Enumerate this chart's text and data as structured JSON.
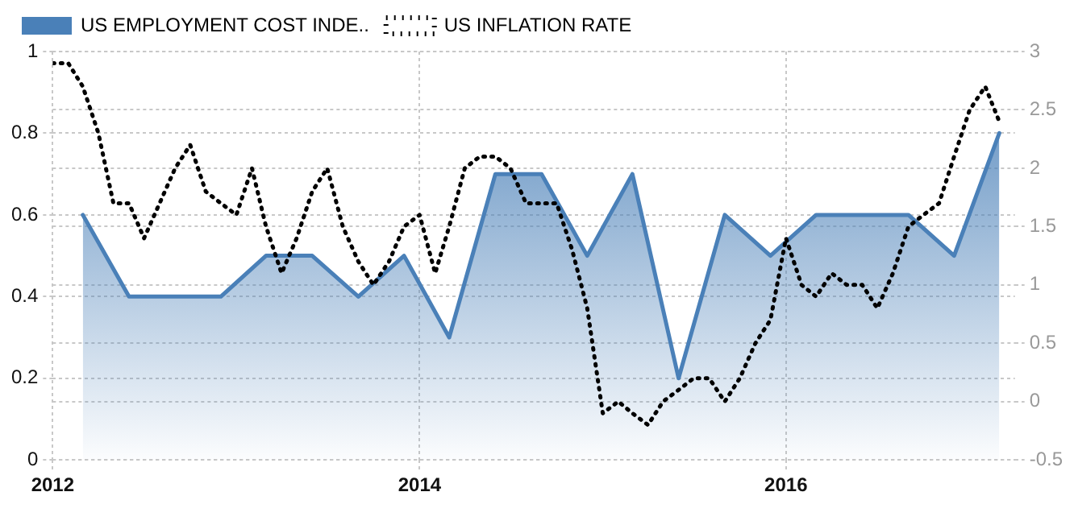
{
  "chart_data": {
    "type": "area",
    "x": [
      "2012-01",
      "2012-02",
      "2012-03",
      "2012-04",
      "2012-05",
      "2012-06",
      "2012-07",
      "2012-08",
      "2012-09",
      "2012-10",
      "2012-11",
      "2012-12",
      "2013-01",
      "2013-02",
      "2013-03",
      "2013-04",
      "2013-05",
      "2013-06",
      "2013-07",
      "2013-08",
      "2013-09",
      "2013-10",
      "2013-11",
      "2013-12",
      "2014-01",
      "2014-02",
      "2014-03",
      "2014-04",
      "2014-05",
      "2014-06",
      "2014-07",
      "2014-08",
      "2014-09",
      "2014-10",
      "2014-11",
      "2014-12",
      "2015-01",
      "2015-02",
      "2015-03",
      "2015-04",
      "2015-05",
      "2015-06",
      "2015-07",
      "2015-08",
      "2015-09",
      "2015-10",
      "2015-11",
      "2015-12",
      "2016-01",
      "2016-02",
      "2016-03",
      "2016-04",
      "2016-05",
      "2016-06",
      "2016-07",
      "2016-08",
      "2016-09",
      "2016-10",
      "2016-11",
      "2016-12",
      "2017-01",
      "2017-02",
      "2017-03"
    ],
    "series": [
      {
        "name": "US EMPLOYMENT COST INDE..",
        "type": "area",
        "color": "#4a80b8",
        "x": [
          "2012-03",
          "2012-06",
          "2012-09",
          "2012-12",
          "2013-03",
          "2013-06",
          "2013-09",
          "2013-12",
          "2014-03",
          "2014-06",
          "2014-09",
          "2014-12",
          "2015-03",
          "2015-06",
          "2015-09",
          "2015-12",
          "2016-03",
          "2016-06",
          "2016-09",
          "2016-12",
          "2017-03"
        ],
        "values": [
          0.6,
          0.4,
          0.4,
          0.4,
          0.5,
          0.5,
          0.4,
          0.5,
          0.3,
          0.7,
          0.7,
          0.5,
          0.7,
          0.2,
          0.6,
          0.5,
          0.6,
          0.6,
          0.6,
          0.5,
          0.8
        ]
      },
      {
        "name": "US INFLATION RATE",
        "type": "line",
        "axis": "y2",
        "color": "#000000",
        "line_style": "dotted",
        "values": [
          2.9,
          2.9,
          2.7,
          2.3,
          1.7,
          1.7,
          1.4,
          1.7,
          2.0,
          2.2,
          1.8,
          1.7,
          1.6,
          2.0,
          1.5,
          1.1,
          1.4,
          1.8,
          2.0,
          1.5,
          1.2,
          1.0,
          1.2,
          1.5,
          1.6,
          1.1,
          1.5,
          2.0,
          2.1,
          2.1,
          2.0,
          1.7,
          1.7,
          1.7,
          1.3,
          0.8,
          -0.1,
          0.0,
          -0.1,
          -0.2,
          0.0,
          0.1,
          0.2,
          0.2,
          0.0,
          0.2,
          0.5,
          0.7,
          1.4,
          1.0,
          0.9,
          1.1,
          1.0,
          1.0,
          0.8,
          1.1,
          1.5,
          1.6,
          1.7,
          2.1,
          2.5,
          2.7,
          2.4
        ]
      }
    ],
    "xlim": [
      "2012-01",
      "2017-04"
    ],
    "xticks": [
      "2012",
      "2014",
      "2016"
    ],
    "ylim": [
      0,
      1
    ],
    "yticks": [
      0,
      0.2,
      0.4,
      0.6,
      0.8,
      1
    ],
    "y2lim": [
      -0.5,
      3
    ],
    "y2ticks": [
      -0.5,
      0,
      0.5,
      1,
      1.5,
      2,
      2.5,
      3
    ],
    "grid": true,
    "legend": "top left",
    "marker": "none"
  }
}
